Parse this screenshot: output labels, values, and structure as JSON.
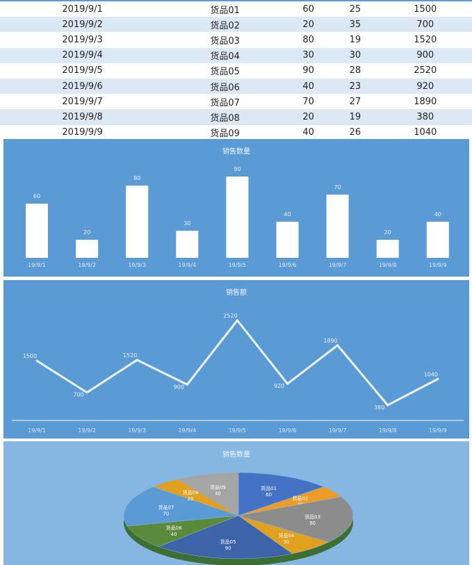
{
  "table": {
    "rows": [
      [
        "2019/9/1",
        "货品01",
        "60",
        "25",
        "1500"
      ],
      [
        "2019/9/2",
        "货品02",
        "20",
        "35",
        "700"
      ],
      [
        "2019/9/3",
        "货品03",
        "80",
        "19",
        "1520"
      ],
      [
        "2019/9/4",
        "货品04",
        "30",
        "30",
        "900"
      ],
      [
        "2019/9/5",
        "货品05",
        "90",
        "28",
        "2520"
      ],
      [
        "2019/9/6",
        "货品06",
        "40",
        "23",
        "920"
      ],
      [
        "2019/9/7",
        "货品07",
        "70",
        "27",
        "1890"
      ],
      [
        "2019/9/8",
        "货品08",
        "20",
        "19",
        "380"
      ],
      [
        "2019/9/9",
        "货品09",
        "40",
        "26",
        "1040"
      ]
    ]
  },
  "chart_data": [
    {
      "type": "bar",
      "title": "销售数量",
      "categories": [
        "19/9/1",
        "19/9/2",
        "19/9/3",
        "19/9/4",
        "19/9/5",
        "19/9/6",
        "19/9/7",
        "19/9/8",
        "19/9/9"
      ],
      "values": [
        60,
        20,
        80,
        30,
        90,
        40,
        70,
        20,
        40
      ],
      "color": "#ffffff",
      "background": "#5b9bd5"
    },
    {
      "type": "line",
      "title": "销售额",
      "categories": [
        "19/9/1",
        "19/9/2",
        "19/9/3",
        "19/9/4",
        "19/9/5",
        "19/9/6",
        "19/9/7",
        "19/9/8",
        "19/9/9"
      ],
      "values": [
        1500,
        700,
        1520,
        900,
        2520,
        920,
        1890,
        380,
        1040
      ],
      "background": "#5b9bd5"
    },
    {
      "type": "pie",
      "title": "销售数量",
      "labels": [
        "货品01",
        "货品02",
        "货品03",
        "货品04",
        "货品05",
        "货品06",
        "货品07",
        "货品08",
        "货品09"
      ],
      "values": [
        60,
        20,
        80,
        30,
        90,
        40,
        70,
        20,
        40
      ],
      "colors": [
        "#4472c4",
        "#ed9c28",
        "#8c8c8c",
        "#e0a020",
        "#3d64a8",
        "#5a8a3c",
        "#5b9bd5",
        "#e0a020",
        "#a5a5a5"
      ],
      "background": "#86b6e2"
    }
  ]
}
